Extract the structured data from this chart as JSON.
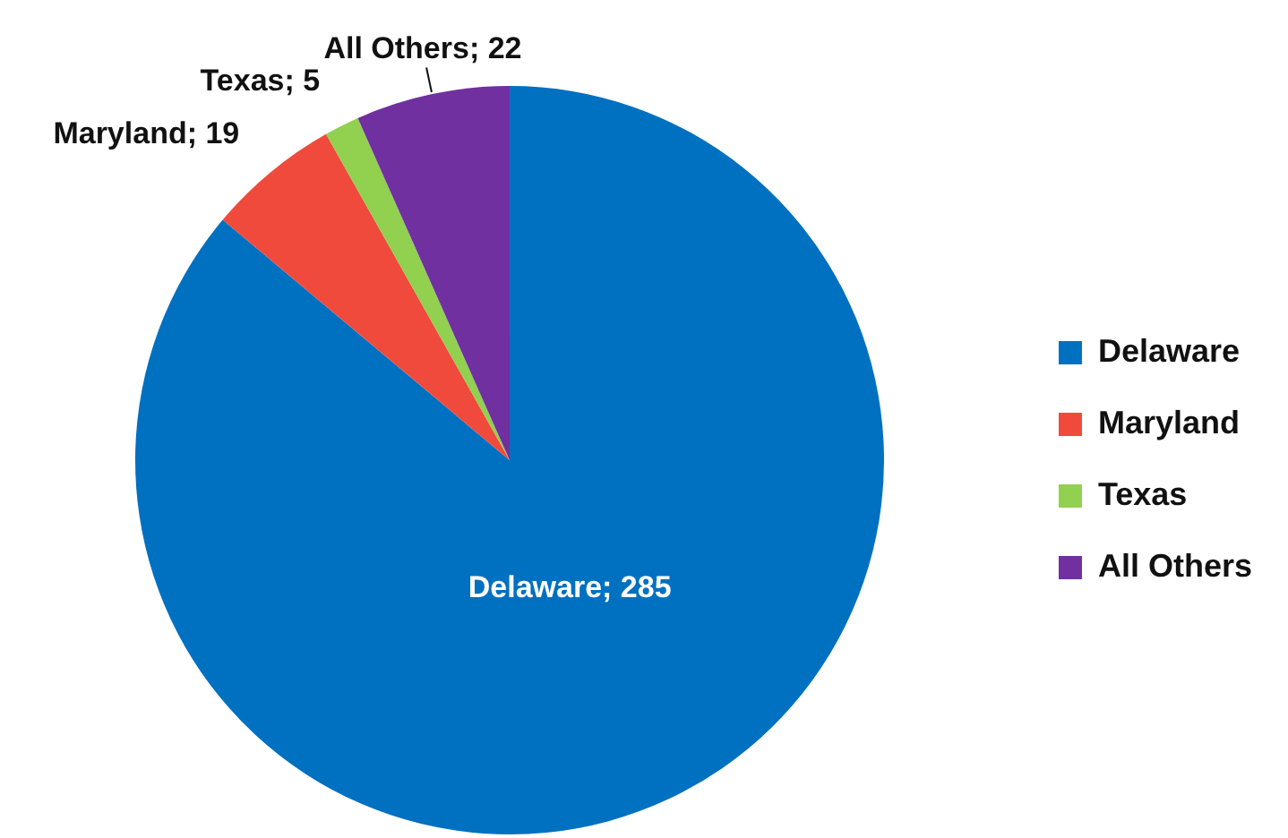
{
  "chart_data": {
    "type": "pie",
    "categories": [
      "Delaware",
      "Maryland",
      "Texas",
      "All Others"
    ],
    "values": [
      285,
      19,
      5,
      22
    ],
    "colors": [
      "#0070c0",
      "#f04a3c",
      "#92d050",
      "#7030a0"
    ],
    "value_labels": [
      "Delaware; 285",
      "Maryland; 19",
      "Texas; 5",
      "All Others; 22"
    ],
    "legend": "right"
  }
}
